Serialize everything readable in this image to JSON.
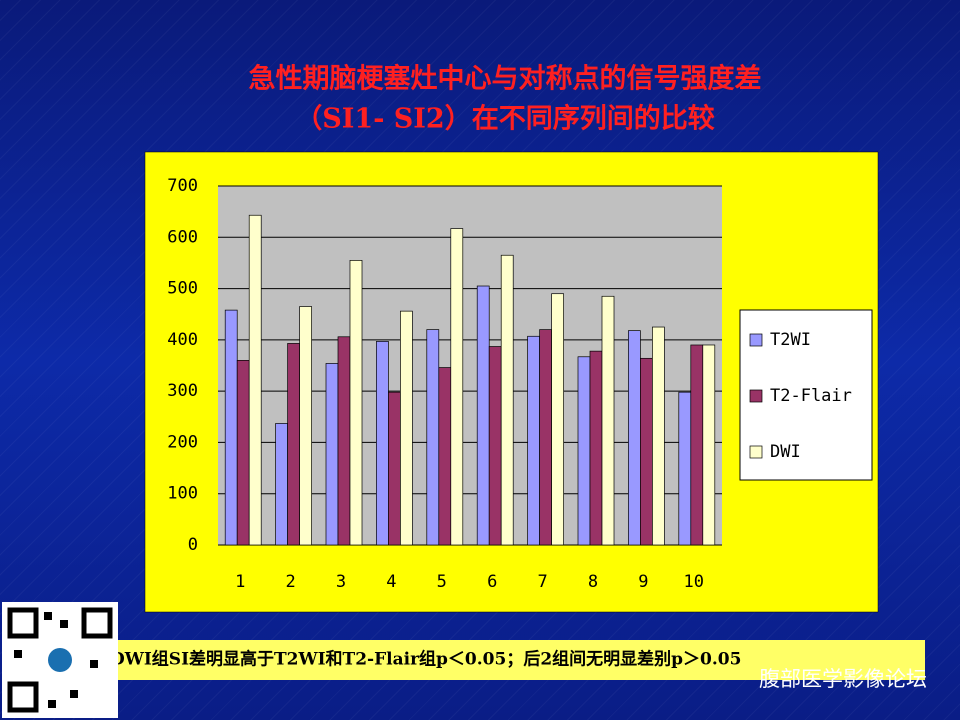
{
  "chart_data": {
    "type": "bar",
    "title": "急性期脑梗塞灶中心与对称点的信号强度差",
    "subtitle": "（SI1- SI2）在不同序列间的比较",
    "categories": [
      "1",
      "2",
      "3",
      "4",
      "5",
      "6",
      "7",
      "8",
      "9",
      "10"
    ],
    "series": [
      {
        "name": "T2WI",
        "color": "#9999ff",
        "values": [
          458,
          237,
          354,
          397,
          420,
          505,
          407,
          367,
          418,
          298
        ]
      },
      {
        "name": "T2-Flair",
        "color": "#993366",
        "values": [
          360,
          393,
          406,
          298,
          346,
          387,
          420,
          378,
          364,
          390
        ]
      },
      {
        "name": "DWI",
        "color": "#ffffcc",
        "values": [
          643,
          465,
          555,
          456,
          617,
          565,
          490,
          485,
          425,
          390
        ]
      }
    ],
    "ylim": [
      0,
      700
    ],
    "yticks": [
      0,
      100,
      200,
      300,
      400,
      500,
      600,
      700
    ],
    "grid": true,
    "legend": "right"
  },
  "caption": "DWI组SI差明显高于T2WI和T2-Flair组p＜0.05；后2组间无明显差别p＞0.05",
  "watermark": "腹部医学影像论坛"
}
